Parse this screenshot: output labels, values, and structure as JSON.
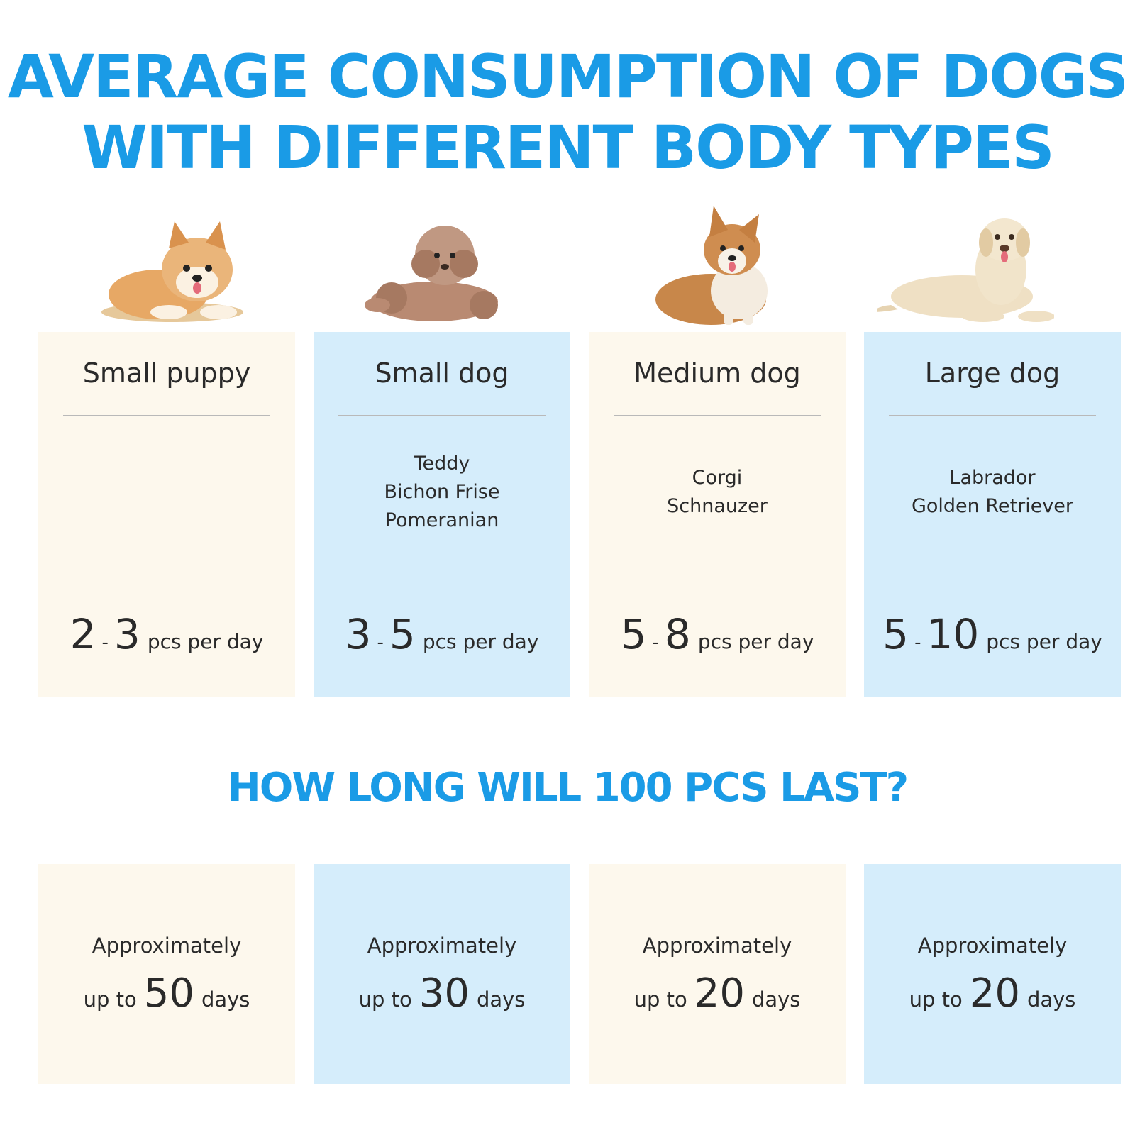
{
  "title": {
    "line1": "AVERAGE CONSUMPTION OF DOGS",
    "line2": "WITH DIFFERENT BODY TYPES"
  },
  "dogs": [
    {
      "icon": "shiba-puppy-icon",
      "category": "Small puppy",
      "breeds": [],
      "min": "2",
      "max": "3",
      "unit": "pcs per day"
    },
    {
      "icon": "poodle-icon",
      "category": "Small dog",
      "breeds": [
        "Teddy",
        "Bichon Frise",
        "Pomeranian"
      ],
      "min": "3",
      "max": "5",
      "unit": "pcs per day"
    },
    {
      "icon": "corgi-icon",
      "category": "Medium dog",
      "breeds": [
        "Corgi",
        "Schnauzer"
      ],
      "min": "5",
      "max": "8",
      "unit": "pcs per day"
    },
    {
      "icon": "labrador-icon",
      "category": "Large dog",
      "breeds": [
        "Labrador",
        "Golden Retriever"
      ],
      "min": "5",
      "max": "10",
      "unit": "pcs per day"
    }
  ],
  "subtitle": "HOW LONG WILL 100 PCS LAST?",
  "duration": [
    {
      "approx": "Approximately",
      "prefix": "up to",
      "days": "50",
      "suffix": "days"
    },
    {
      "approx": "Approximately",
      "prefix": "up to",
      "days": "30",
      "suffix": "days"
    },
    {
      "approx": "Approximately",
      "prefix": "up to",
      "days": "20",
      "suffix": "days"
    },
    {
      "approx": "Approximately",
      "prefix": "up to",
      "days": "20",
      "suffix": "days"
    }
  ],
  "colors": {
    "accent": "#1a9be6",
    "cream": "#fdf8ed",
    "light_blue": "#d5edfb"
  }
}
